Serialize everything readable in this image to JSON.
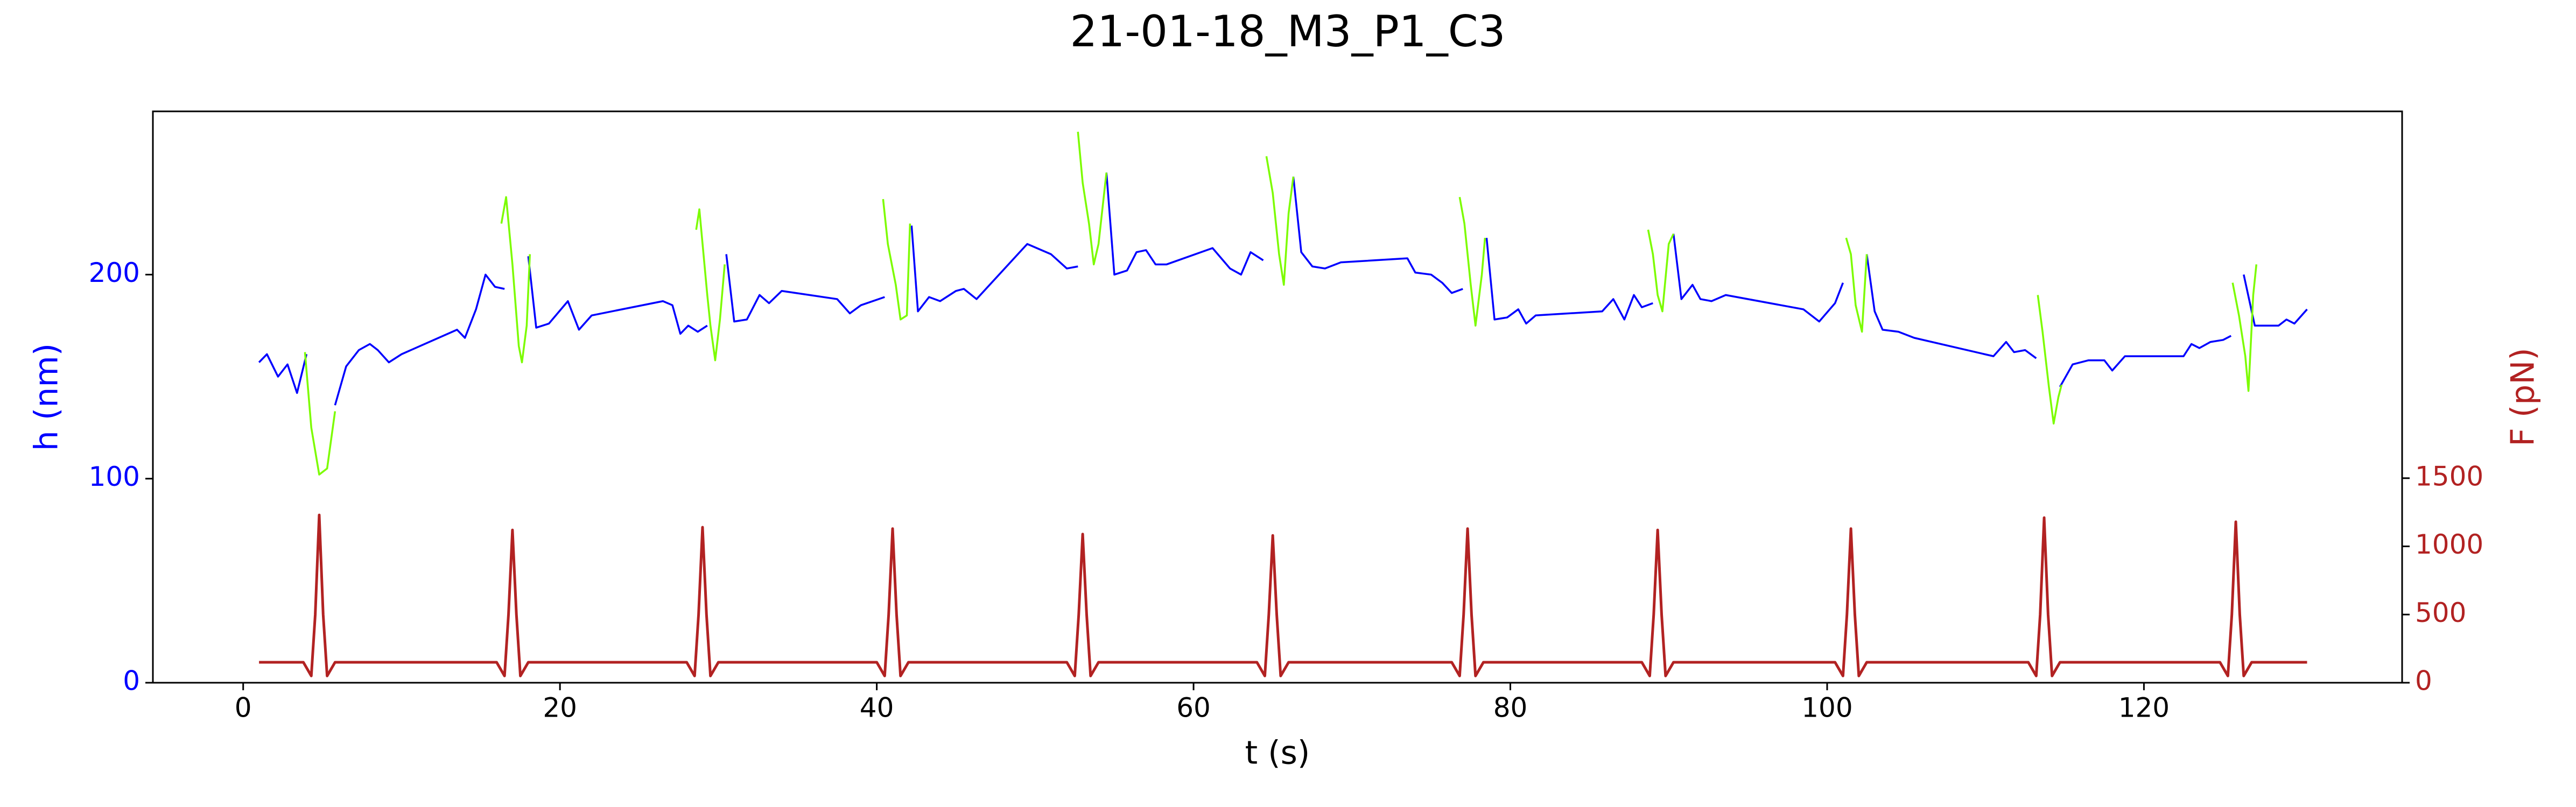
{
  "chart_data": {
    "type": "line",
    "title": "21-01-18_M3_P1_C3",
    "xlabel": "t (s)",
    "ylabel": "h (nm)",
    "y2label": "F (pN)",
    "xlim": [
      -5.7,
      136.3
    ],
    "ylim": [
      0,
      280
    ],
    "y2lim": [
      0,
      4190
    ],
    "xticks": [
      0,
      20,
      40,
      60,
      80,
      100,
      120
    ],
    "yticks": [
      0,
      100,
      200
    ],
    "y2ticks": [
      0,
      500,
      1000,
      1500
    ],
    "series": [
      {
        "color": "#0000ff",
        "x": [
          1,
          1.5,
          2.2,
          2.8,
          3.4,
          4,
          null,
          5.8,
          6.5,
          7.3,
          8,
          8.5,
          9.2,
          10,
          13.5,
          14,
          14.7,
          15.3,
          15.9,
          16.5,
          null,
          18,
          18.5,
          19.3,
          20.5,
          21.2,
          22,
          26.5,
          27.1,
          27.6,
          28.1,
          28.7,
          29.3,
          null,
          30.5,
          31,
          31.8,
          32.6,
          33.2,
          34,
          37.5,
          38.3,
          39,
          40.5,
          null,
          42.2,
          42.6,
          43.3,
          44,
          45,
          45.5,
          46.3,
          49.5,
          51,
          52,
          52.7,
          null,
          54.5,
          55,
          55.8,
          56.4,
          57,
          57.6,
          58.3,
          61.2,
          62.3,
          63,
          63.6,
          64.4,
          null,
          66.3,
          66.8,
          67.5,
          68.3,
          69.3,
          73.5,
          74,
          75,
          75.7,
          76.3,
          77,
          null,
          78.5,
          79,
          79.8,
          80.5,
          81,
          81.6,
          85.8,
          86.5,
          87.2,
          87.8,
          88.3,
          89,
          null,
          90.3,
          90.8,
          91.5,
          92,
          92.7,
          93.6,
          98.5,
          99.5,
          100.5,
          101,
          null,
          102.5,
          103,
          103.5,
          104.5,
          105.5,
          110.5,
          111.3,
          111.8,
          112.5,
          113.2,
          null,
          114.7,
          115.5,
          116.5,
          117.5,
          118,
          118.8,
          122.5,
          123,
          123.5,
          124.2,
          125,
          125.5,
          null,
          126.3,
          127,
          128.5,
          129,
          129.5,
          130.3
        ],
        "values": [
          157,
          161,
          150,
          156,
          142,
          161,
          null,
          136,
          155,
          163,
          166,
          163,
          157,
          161,
          173,
          169,
          183,
          200,
          194,
          193,
          null,
          209,
          174,
          176,
          187,
          173,
          180,
          187,
          185,
          171,
          175,
          172,
          175,
          null,
          210,
          177,
          178,
          190,
          186,
          192,
          188,
          181,
          185,
          189,
          null,
          224,
          182,
          189,
          187,
          192,
          193,
          188,
          215,
          210,
          203,
          204,
          null,
          250,
          200,
          202,
          211,
          212,
          205,
          205,
          213,
          203,
          200,
          211,
          207,
          null,
          248,
          211,
          204,
          203,
          206,
          208,
          201,
          200,
          196,
          191,
          193,
          null,
          218,
          178,
          179,
          183,
          176,
          180,
          182,
          188,
          178,
          190,
          184,
          186,
          null,
          220,
          188,
          195,
          188,
          187,
          190,
          183,
          177,
          186,
          196,
          null,
          210,
          182,
          173,
          172,
          169,
          160,
          167,
          162,
          163,
          159,
          null,
          145,
          156,
          158,
          158,
          153,
          160,
          160,
          166,
          164,
          167,
          168,
          170,
          null,
          200,
          175,
          175,
          178,
          176,
          183
        ]
      },
      {
        "color": "#7cfc00",
        "x": [
          3.9,
          4.3,
          4.8,
          5.3,
          5.8,
          null,
          16.3,
          16.6,
          17,
          17.4,
          17.6,
          17.9,
          18.1,
          null,
          28.6,
          28.8,
          29.3,
          29.5,
          29.8,
          30.1,
          30.4,
          null,
          40.4,
          40.7,
          41.2,
          41.5,
          41.9,
          42.1,
          null,
          52.7,
          53,
          53.4,
          53.7,
          54,
          54.5,
          null,
          64.6,
          65,
          65.4,
          65.7,
          66,
          66.3,
          null,
          76.8,
          77.1,
          77.5,
          77.8,
          78.2,
          78.4,
          null,
          88.7,
          89,
          89.3,
          89.6,
          90,
          90.3,
          null,
          101.2,
          101.5,
          101.8,
          102.2,
          102.5,
          null,
          113.3,
          113.6,
          114,
          114.3,
          114.6,
          114.8,
          null,
          125.6,
          126,
          126.4,
          126.6,
          126.9,
          127.1
        ],
        "values": [
          162,
          125,
          102,
          105,
          133,
          null,
          225,
          238,
          205,
          165,
          157,
          175,
          210,
          null,
          222,
          232,
          190,
          175,
          158,
          178,
          205,
          null,
          237,
          215,
          195,
          178,
          180,
          225,
          null,
          270,
          245,
          225,
          205,
          215,
          250,
          null,
          258,
          240,
          210,
          195,
          230,
          248,
          null,
          238,
          225,
          195,
          175,
          200,
          218,
          null,
          222,
          210,
          190,
          182,
          215,
          220,
          null,
          218,
          210,
          185,
          172,
          210,
          null,
          190,
          172,
          145,
          127,
          140,
          146,
          null,
          196,
          180,
          160,
          143,
          190,
          205
        ]
      },
      {
        "color": "#b22222",
        "axis": "y2",
        "x": [
          1,
          3.8,
          4.3,
          4.55,
          4.8,
          5.05,
          5.3,
          5.8,
          16,
          16.5,
          16.75,
          17,
          17.25,
          17.5,
          18,
          28,
          28.5,
          28.75,
          29,
          29.25,
          29.5,
          30,
          40,
          40.5,
          40.75,
          41,
          41.25,
          41.5,
          42,
          52,
          52.5,
          52.75,
          53,
          53.25,
          53.5,
          54,
          64,
          64.5,
          64.75,
          65,
          65.25,
          65.5,
          66,
          76.3,
          76.8,
          77.05,
          77.3,
          77.55,
          77.8,
          78.3,
          88.3,
          88.8,
          89.05,
          89.3,
          89.55,
          89.8,
          90.3,
          100.5,
          101,
          101.25,
          101.5,
          101.75,
          102,
          102.5,
          112.7,
          113.2,
          113.45,
          113.7,
          113.95,
          114.2,
          114.7,
          124.8,
          125.3,
          125.55,
          125.8,
          126.05,
          126.3,
          126.8,
          130.3
        ],
        "values": [
          150,
          150,
          50,
          500,
          1230,
          500,
          50,
          150,
          150,
          50,
          500,
          1120,
          500,
          50,
          150,
          150,
          50,
          500,
          1140,
          500,
          50,
          150,
          150,
          50,
          500,
          1130,
          500,
          50,
          150,
          150,
          50,
          500,
          1090,
          500,
          50,
          150,
          150,
          50,
          500,
          1080,
          500,
          50,
          150,
          150,
          50,
          500,
          1130,
          500,
          50,
          150,
          150,
          50,
          500,
          1120,
          500,
          50,
          150,
          150,
          50,
          500,
          1130,
          500,
          50,
          150,
          150,
          50,
          500,
          1210,
          500,
          50,
          150,
          150,
          50,
          500,
          1180,
          500,
          50,
          150,
          150
        ]
      }
    ]
  }
}
